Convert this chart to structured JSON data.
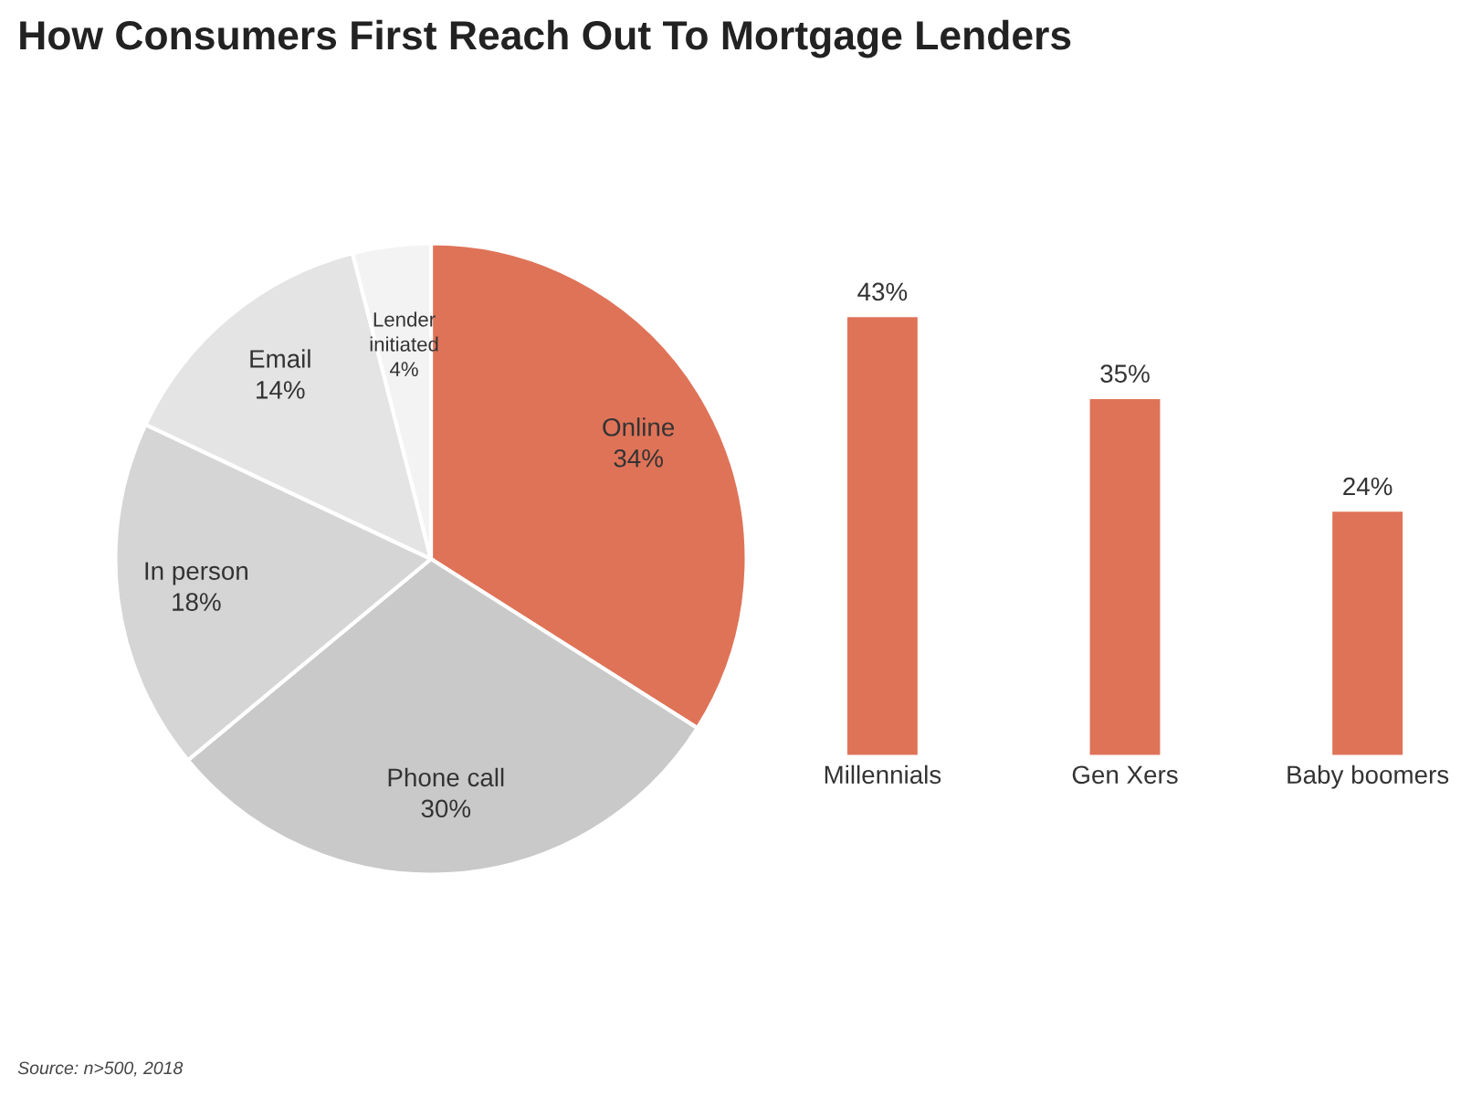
{
  "chart_data": [
    {
      "type": "pie",
      "title": "How Consumers First Reach Out To Mortgage Lenders",
      "categories": [
        "Online",
        "Phone call",
        "In person",
        "Email",
        "Lender initiated"
      ],
      "values": [
        34,
        30,
        18,
        14,
        4
      ],
      "value_labels": [
        "34%",
        "30%",
        "18%",
        "14%",
        "4%"
      ],
      "colors": [
        "#df7358",
        "#c9c9c9",
        "#d5d5d5",
        "#e4e4e4",
        "#f3f3f3"
      ],
      "annotations": [
        "Source: n>500, 2018"
      ]
    },
    {
      "type": "bar",
      "categories": [
        "Millennials",
        "Gen Xers",
        "Baby boomers"
      ],
      "values": [
        43,
        35,
        24
      ],
      "value_labels": [
        "43%",
        "35%",
        "24%"
      ],
      "color": "#df7358"
    }
  ]
}
